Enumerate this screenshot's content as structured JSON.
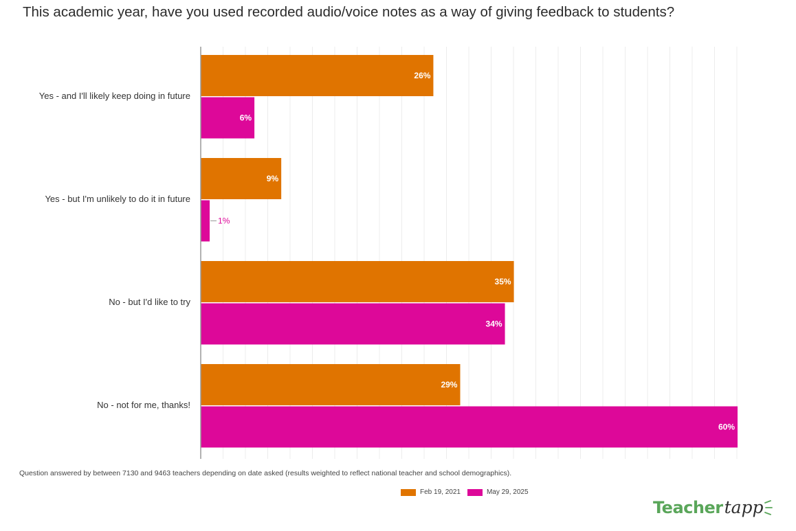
{
  "title": "This academic year, have you used recorded audio/voice notes as a way of giving feedback to students?",
  "chart_data": {
    "type": "bar",
    "orientation": "horizontal",
    "title": "This academic year, have you used recorded audio/voice notes as a way of giving feedback to students?",
    "categories": [
      "Yes - and I'll likely keep doing in future",
      "Yes - but I'm unlikely to do it in future",
      "No - but I'd like to try",
      "No - not for me, thanks!"
    ],
    "series": [
      {
        "name": "Feb 19, 2021",
        "color": "#e07400",
        "values": [
          26,
          9,
          35,
          29
        ],
        "labels": [
          "26%",
          "9%",
          "35%",
          "29%"
        ]
      },
      {
        "name": "May 29, 2025",
        "color": "#dd0899",
        "values": [
          6,
          1,
          34,
          60
        ],
        "labels": [
          "6%",
          "1%",
          "34%",
          "60%"
        ]
      }
    ],
    "xlim": [
      0,
      60
    ],
    "xlabel": "",
    "ylabel": "",
    "grid": true,
    "legend": "bottom-center"
  },
  "footnote": "Question answered by between 7130 and 9463 teachers depending on date asked (results weighted to reflect national teacher and school demographics).",
  "logo": {
    "part1": "Teacher",
    "part2": "tapp"
  }
}
